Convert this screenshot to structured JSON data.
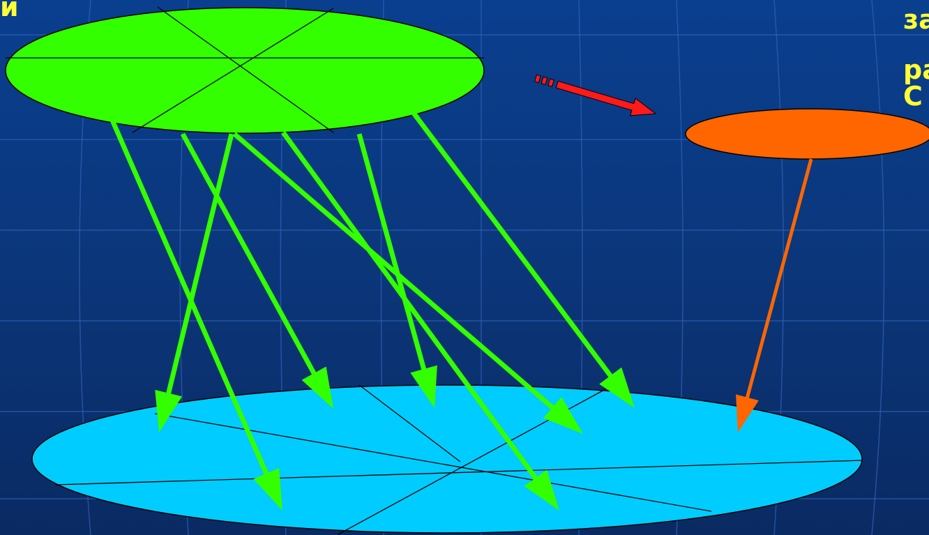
{
  "labels": {
    "top_left": "и",
    "right_line1": "за",
    "right_line2": "ра",
    "right_line3": "С"
  },
  "colors": {
    "background": "#0b3a86",
    "grid": "#2f63b8",
    "green_ellipse": "#33ff00",
    "green_arrows": "#33ff00",
    "cyan_ellipse": "#00ccff",
    "orange_ellipse": "#ff6600",
    "orange_arrow": "#ff6600",
    "red_arrow": "#ff1a1a",
    "text": "#ffff33"
  }
}
